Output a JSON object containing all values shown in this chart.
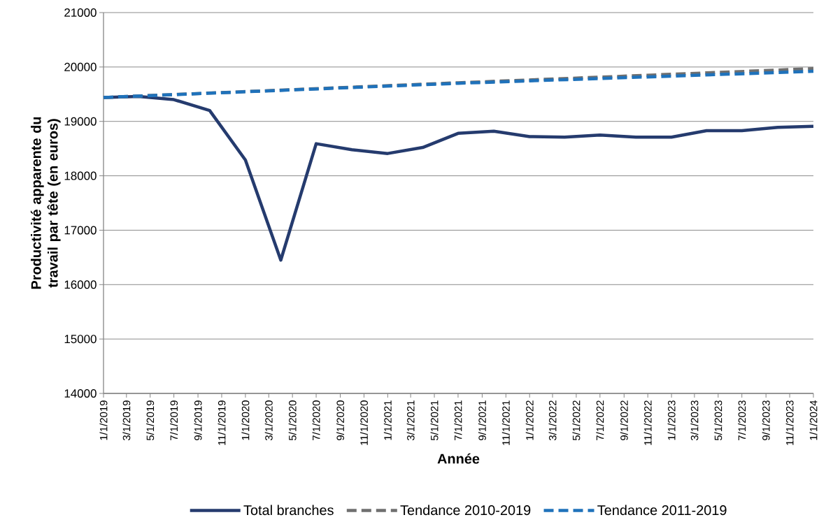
{
  "chart_data": {
    "type": "line",
    "xlabel": "Année",
    "ylabel": "Productivité apparente du travail par tête (en euros)",
    "x": [
      "2019-01-01",
      "2019-04-01",
      "2019-07-01",
      "2019-10-01",
      "2020-01-01",
      "2020-04-01",
      "2020-07-01",
      "2020-10-01",
      "2021-01-01",
      "2021-04-01",
      "2021-07-01",
      "2021-10-01",
      "2022-01-01",
      "2022-04-01",
      "2022-07-01",
      "2022-10-01",
      "2023-01-01",
      "2023-04-01",
      "2023-07-01",
      "2023-10-01",
      "2024-01-01"
    ],
    "series": [
      {
        "name": "Total branches",
        "color": "#253b6e",
        "line_style": "solid",
        "values": [
          19440,
          19460,
          19400,
          19200,
          18290,
          16450,
          18590,
          18480,
          18410,
          18520,
          18780,
          18820,
          18720,
          18710,
          18750,
          18710,
          18710,
          18830,
          18830,
          18890,
          18910
        ]
      },
      {
        "name": "Tendance 2010-2019",
        "color": "#6f6f6f",
        "line_style": "dashed",
        "x": [
          "2019-01-01",
          "2021-07-01",
          "2024-01-01"
        ],
        "values": [
          19440,
          19710,
          19970
        ]
      },
      {
        "name": "Tendance 2011-2019",
        "color": "#1f72bb",
        "line_style": "dashed",
        "x": [
          "2019-01-01",
          "2021-07-01",
          "2024-01-01"
        ],
        "values": [
          19440,
          19700,
          19920
        ]
      }
    ],
    "xlim": [
      "2019-01-01",
      "2024-01-01"
    ],
    "xticks": [
      {
        "value": "2019-01-01",
        "label": "1/1/2019"
      },
      {
        "value": "2019-03-01",
        "label": "3/1/2019"
      },
      {
        "value": "2019-05-01",
        "label": "5/1/2019"
      },
      {
        "value": "2019-07-01",
        "label": "7/1/2019"
      },
      {
        "value": "2019-09-01",
        "label": "9/1/2019"
      },
      {
        "value": "2019-11-01",
        "label": "11/1/2019"
      },
      {
        "value": "2020-01-01",
        "label": "1/1/2020"
      },
      {
        "value": "2020-03-01",
        "label": "3/1/2020"
      },
      {
        "value": "2020-05-01",
        "label": "5/1/2020"
      },
      {
        "value": "2020-07-01",
        "label": "7/1/2020"
      },
      {
        "value": "2020-09-01",
        "label": "9/1/2020"
      },
      {
        "value": "2020-11-01",
        "label": "11/1/2020"
      },
      {
        "value": "2021-01-01",
        "label": "1/1/2021"
      },
      {
        "value": "2021-03-01",
        "label": "3/1/2021"
      },
      {
        "value": "2021-05-01",
        "label": "5/1/2021"
      },
      {
        "value": "2021-07-01",
        "label": "7/1/2021"
      },
      {
        "value": "2021-09-01",
        "label": "9/1/2021"
      },
      {
        "value": "2021-11-01",
        "label": "11/1/2021"
      },
      {
        "value": "2022-01-01",
        "label": "1/1/2022"
      },
      {
        "value": "2022-03-01",
        "label": "3/1/2022"
      },
      {
        "value": "2022-05-01",
        "label": "5/1/2022"
      },
      {
        "value": "2022-07-01",
        "label": "7/1/2022"
      },
      {
        "value": "2022-09-01",
        "label": "9/1/2022"
      },
      {
        "value": "2022-11-01",
        "label": "11/1/2022"
      },
      {
        "value": "2023-01-01",
        "label": "1/1/2023"
      },
      {
        "value": "2023-03-01",
        "label": "3/1/2023"
      },
      {
        "value": "2023-05-01",
        "label": "5/1/2023"
      },
      {
        "value": "2023-07-01",
        "label": "7/1/2023"
      },
      {
        "value": "2023-09-01",
        "label": "9/1/2023"
      },
      {
        "value": "2023-11-01",
        "label": "11/1/2023"
      },
      {
        "value": "2024-01-01",
        "label": "1/1/2024"
      }
    ],
    "ylim": [
      14000,
      21000
    ],
    "yticks": [
      14000,
      15000,
      16000,
      17000,
      18000,
      19000,
      20000,
      21000
    ],
    "grid": "y",
    "legend": "bottom",
    "marker": "none"
  }
}
